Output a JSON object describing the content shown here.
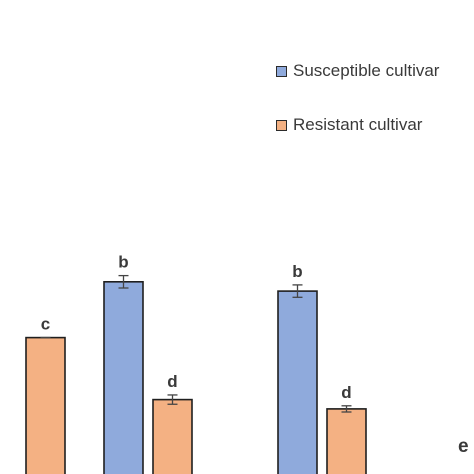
{
  "chart_data": {
    "type": "bar",
    "categories": [
      "",
      "",
      ""
    ],
    "series": [
      {
        "name": "Susceptible cultivar",
        "color": "#8faadc",
        "values": [
          null,
          0.62,
          0.59
        ]
      },
      {
        "name": "Resistant cultivar",
        "color": "#f4b183",
        "values": [
          0.44,
          0.24,
          0.21
        ]
      }
    ],
    "errors": [
      [
        null,
        0.02,
        0.02
      ],
      [
        null,
        0.015,
        0.01
      ]
    ],
    "letters": [
      [
        null,
        "b",
        "b"
      ],
      [
        "c",
        "d",
        "d"
      ]
    ],
    "legend_position": "top-right",
    "grid": false
  },
  "partial_text": "e"
}
